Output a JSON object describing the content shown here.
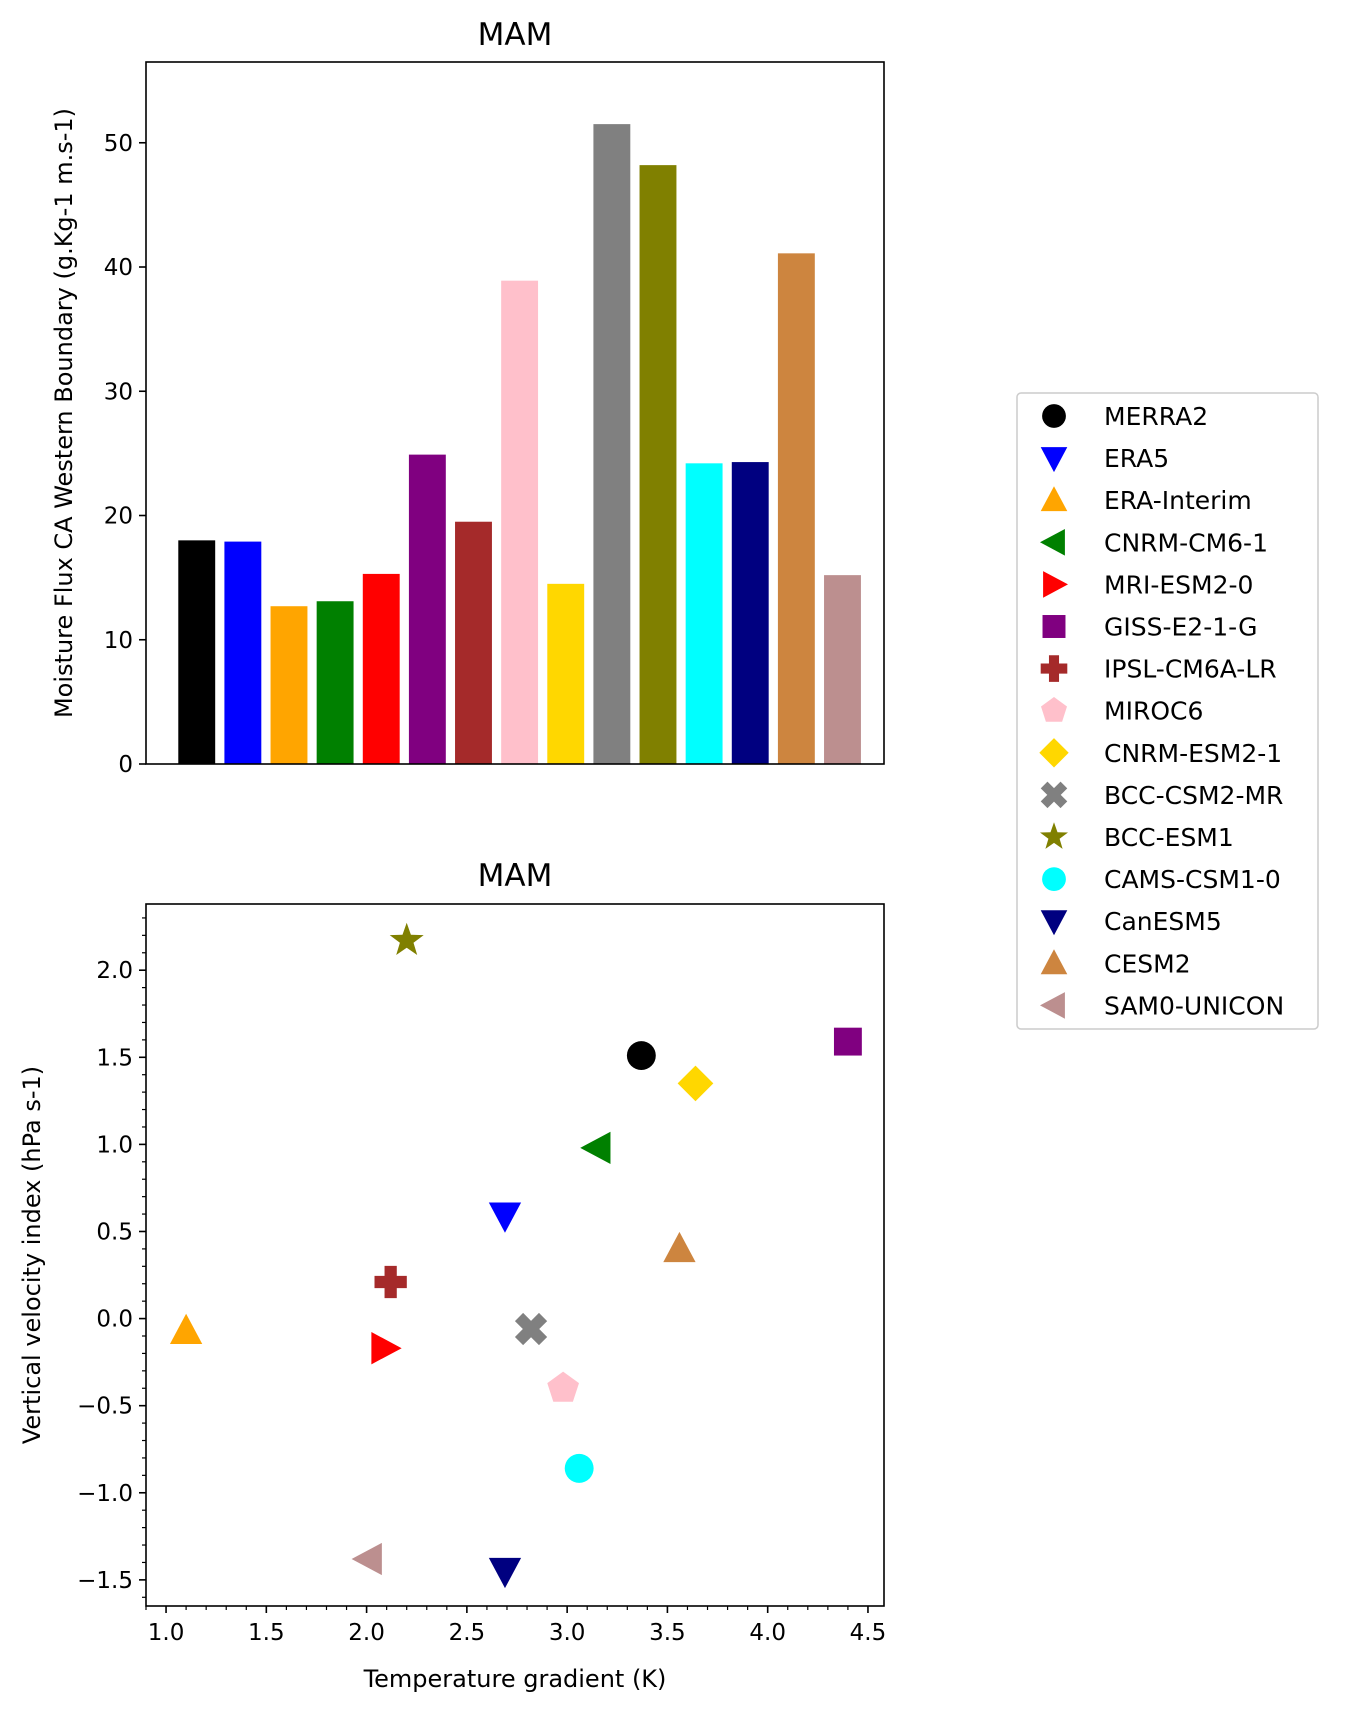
{
  "figure": {
    "top_title": "MAM",
    "bottom_title": "MAM"
  },
  "colors": {
    "MERRA2": "#000000",
    "ERA5": "#0000ff",
    "ERA-Interim": "#ffa500",
    "CNRM-CM6-1": "#008000",
    "MRI-ESM2-0": "#ff0000",
    "GISS-E2-1-G": "#800080",
    "IPSL-CM6A-LR": "#a52a2a",
    "MIROC6": "#ffc0cb",
    "CNRM-ESM2-1": "#ffd700",
    "BCC-CSM2-MR": "#808080",
    "BCC-ESM1": "#808000",
    "CAMS-CSM1-0": "#00ffff",
    "CanESM5": "#000080",
    "CESM2": "#cd853f",
    "SAM0-UNICON": "#bc8f8f"
  },
  "legend": {
    "placement": "right",
    "entries": [
      {
        "label": "MERRA2",
        "marker": "circle",
        "color": "#000000"
      },
      {
        "label": "ERA5",
        "marker": "triangle-down",
        "color": "#0000ff"
      },
      {
        "label": "ERA-Interim",
        "marker": "triangle-up",
        "color": "#ffa500"
      },
      {
        "label": "CNRM-CM6-1",
        "marker": "triangle-left",
        "color": "#008000"
      },
      {
        "label": "MRI-ESM2-0",
        "marker": "triangle-right",
        "color": "#ff0000"
      },
      {
        "label": "GISS-E2-1-G",
        "marker": "square",
        "color": "#800080"
      },
      {
        "label": "IPSL-CM6A-LR",
        "marker": "plus",
        "color": "#a52a2a"
      },
      {
        "label": "MIROC6",
        "marker": "pentagon",
        "color": "#ffc0cb"
      },
      {
        "label": "CNRM-ESM2-1",
        "marker": "diamond",
        "color": "#ffd700"
      },
      {
        "label": "BCC-CSM2-MR",
        "marker": "x",
        "color": "#808080"
      },
      {
        "label": "BCC-ESM1",
        "marker": "star",
        "color": "#808000"
      },
      {
        "label": "CAMS-CSM1-0",
        "marker": "circle",
        "color": "#00ffff"
      },
      {
        "label": "CanESM5",
        "marker": "triangle-down",
        "color": "#000080"
      },
      {
        "label": "CESM2",
        "marker": "triangle-up",
        "color": "#cd853f"
      },
      {
        "label": "SAM0-UNICON",
        "marker": "triangle-left",
        "color": "#bc8f8f"
      }
    ]
  },
  "chart_data": [
    {
      "type": "bar",
      "title": "MAM",
      "xlabel": "",
      "ylabel": "Moisture Flux CA Western Boundary (g.Kg-1 m.s-1)",
      "ylim": [
        0,
        56.5
      ],
      "yticks": [
        0,
        10,
        20,
        30,
        40,
        50
      ],
      "ytick_labels": [
        "0",
        "10",
        "20",
        "30",
        "40",
        "50"
      ],
      "categories": [
        "MERRA2",
        "ERA5",
        "ERA-Interim",
        "CNRM-CM6-1",
        "MRI-ESM2-0",
        "GISS-E2-1-G",
        "IPSL-CM6A-LR",
        "MIROC6",
        "CNRM-ESM2-1",
        "BCC-CSM2-MR",
        "BCC-ESM1",
        "CAMS-CSM1-0",
        "CanESM5",
        "CESM2",
        "SAM0-UNICON"
      ],
      "values": [
        18.0,
        17.9,
        12.7,
        13.1,
        15.3,
        24.9,
        19.5,
        38.9,
        14.5,
        51.5,
        48.2,
        24.2,
        24.3,
        41.1,
        15.2
      ],
      "grid": false
    },
    {
      "type": "scatter",
      "title": "MAM",
      "xlabel": "Temperature gradient (K)",
      "ylabel": "Vertical velocity index (hPa s-1)",
      "xlim": [
        0.9,
        4.58
      ],
      "ylim": [
        -1.65,
        2.38
      ],
      "xticks": [
        1.0,
        1.5,
        2.0,
        2.5,
        3.0,
        3.5,
        4.0,
        4.5
      ],
      "xtick_labels": [
        "1.0",
        "1.5",
        "2.0",
        "2.5",
        "3.0",
        "3.5",
        "4.0",
        "4.5"
      ],
      "yticks": [
        -1.5,
        -1.0,
        -0.5,
        0.0,
        0.5,
        1.0,
        1.5,
        2.0
      ],
      "ytick_labels": [
        "−1.5",
        "−1.0",
        "−0.5",
        "0.0",
        "0.5",
        "1.0",
        "1.5",
        "2.0"
      ],
      "grid": false,
      "points": [
        {
          "name": "MERRA2",
          "x": 3.37,
          "y": 1.51
        },
        {
          "name": "ERA5",
          "x": 2.69,
          "y": 0.59
        },
        {
          "name": "ERA-Interim",
          "x": 1.1,
          "y": -0.07
        },
        {
          "name": "CNRM-CM6-1",
          "x": 3.15,
          "y": 0.98
        },
        {
          "name": "MRI-ESM2-0",
          "x": 2.09,
          "y": -0.17
        },
        {
          "name": "GISS-E2-1-G",
          "x": 4.4,
          "y": 1.59
        },
        {
          "name": "IPSL-CM6A-LR",
          "x": 2.12,
          "y": 0.21
        },
        {
          "name": "MIROC6",
          "x": 2.98,
          "y": -0.4
        },
        {
          "name": "CNRM-ESM2-1",
          "x": 3.64,
          "y": 1.35
        },
        {
          "name": "BCC-CSM2-MR",
          "x": 2.82,
          "y": -0.06
        },
        {
          "name": "BCC-ESM1",
          "x": 2.2,
          "y": 2.17
        },
        {
          "name": "CAMS-CSM1-0",
          "x": 3.06,
          "y": -0.86
        },
        {
          "name": "CanESM5",
          "x": 2.69,
          "y": -1.45
        },
        {
          "name": "CESM2",
          "x": 3.56,
          "y": 0.4
        },
        {
          "name": "SAM0-UNICON",
          "x": 2.01,
          "y": -1.38
        }
      ]
    }
  ]
}
